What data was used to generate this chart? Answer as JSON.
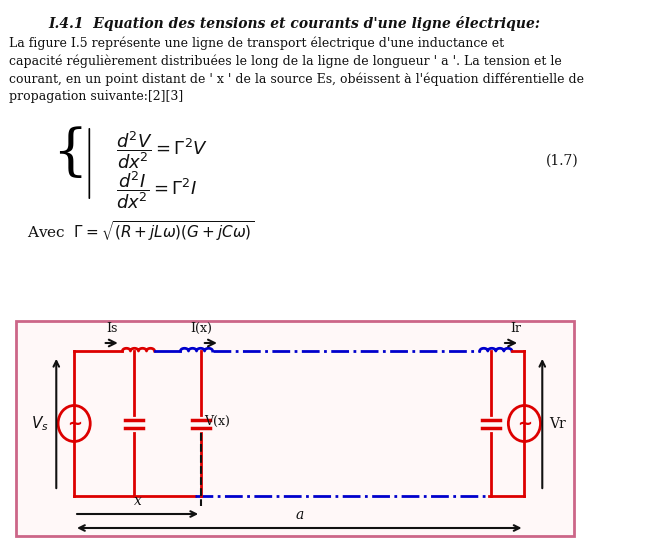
{
  "title": "I.4.1  Equation des tensions et courants d'une ligne électrique:",
  "paragraph1": "La figure I.5 représente une ligne de transport électrique d'une inductance et\ncapacité régulièrement distribuées le long de la ligne de longueur ' a '. La tension et le\ncourant, en un point distant de ' x ' de la source Es, obéissent à l'équation différentielle de\npropagation suivante:[2][3]",
  "avec_text": "Avec  $\\Gamma = \\sqrt{(R + jL\\omega)(G + jC\\omega)}$",
  "eq_number": "(1.7)",
  "bg_color": "#ffffff",
  "circuit_border_color": "#cc6688",
  "red_color": "#dd0000",
  "blue_color": "#0000cc",
  "dark_color": "#111111"
}
